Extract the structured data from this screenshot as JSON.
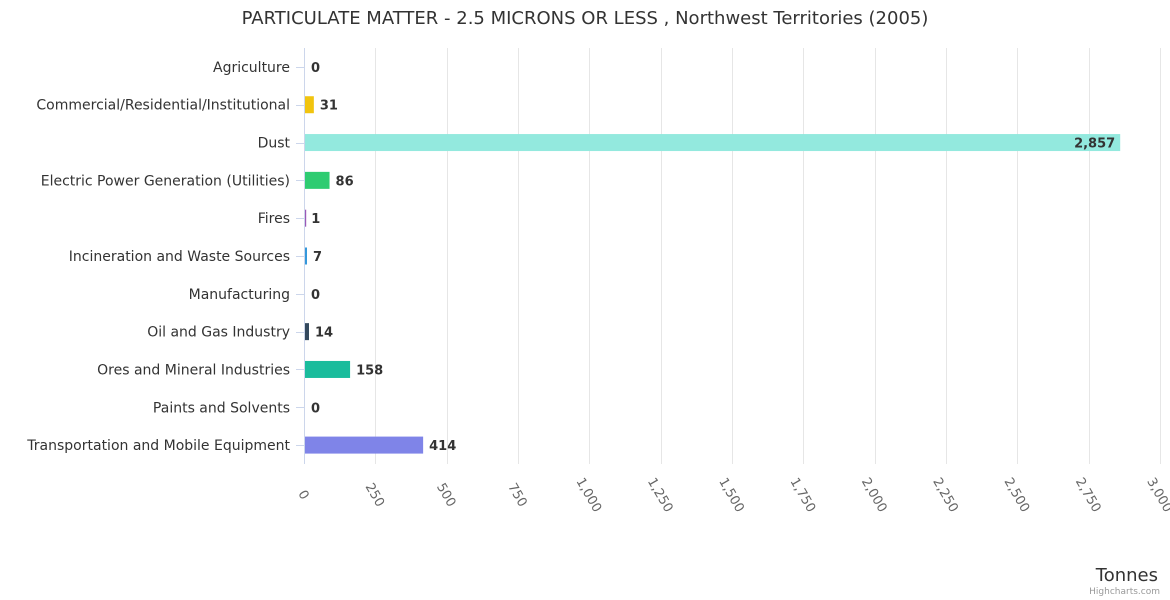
{
  "chart_data": {
    "type": "bar",
    "orientation": "horizontal",
    "title": "PARTICULATE MATTER - 2.5 MICRONS OR LESS , Northwest Territories (2005)",
    "categories": [
      "Agriculture",
      "Commercial/Residential/Institutional",
      "Dust",
      "Electric Power Generation (Utilities)",
      "Fires",
      "Incineration and Waste Sources",
      "Manufacturing",
      "Oil and Gas Industry",
      "Ores and Mineral Industries",
      "Paints and Solvents",
      "Transportation and Mobile Equipment"
    ],
    "values": [
      0,
      31,
      2857,
      86,
      1,
      7,
      0,
      14,
      158,
      0,
      414
    ],
    "value_labels": [
      "0",
      "31",
      "2,857",
      "86",
      "1",
      "7",
      "0",
      "14",
      "158",
      "0",
      "414"
    ],
    "colors": [
      "#8e8eb8",
      "#f1c40f",
      "#93e9de",
      "#2ecc71",
      "#9b59b6",
      "#3498db",
      "#e67e22",
      "#34495e",
      "#1abc9c",
      "#95a5a6",
      "#7f84e8"
    ],
    "xlabel": "Tonnes",
    "ylabel": "",
    "xlim": [
      0,
      3000
    ],
    "ticks": [
      0,
      250,
      500,
      750,
      1000,
      1250,
      1500,
      1750,
      2000,
      2250,
      2500,
      2750,
      3000
    ],
    "tick_labels": [
      "0",
      "250",
      "500",
      "750",
      "1,000",
      "1,250",
      "1,500",
      "1,750",
      "2,000",
      "2,250",
      "2,500",
      "2,750",
      "3,000"
    ],
    "grid": true,
    "legend": "none",
    "credits": "Highcharts.com"
  }
}
